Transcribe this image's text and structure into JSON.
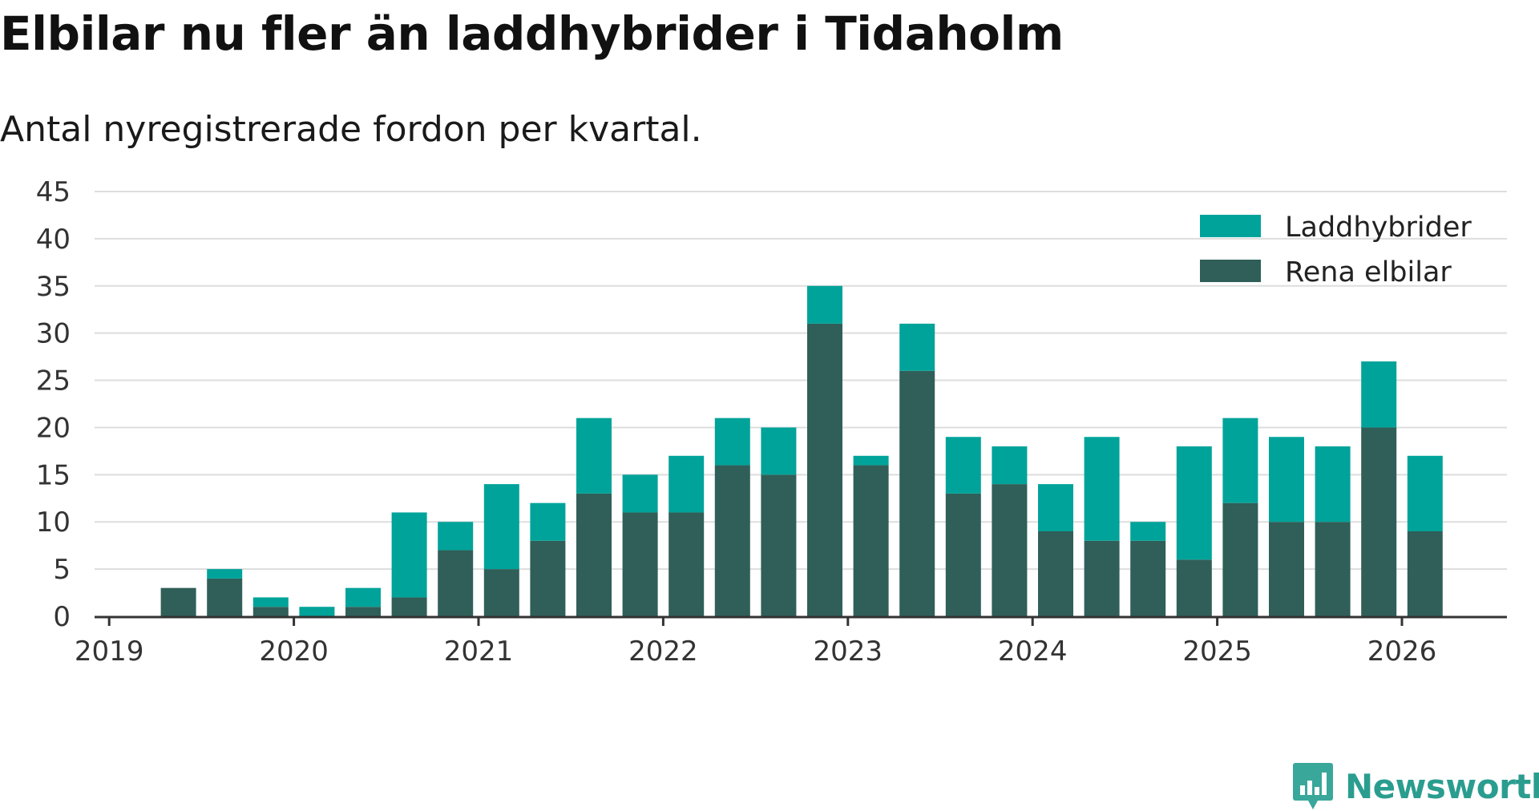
{
  "chart_data": {
    "type": "bar",
    "stacked": true,
    "title": "Elbilar nu fler än laddhybrider i Tidaholm",
    "subtitle": "Antal nyregistrerade fordon per kvartal.",
    "xlabel": "",
    "ylabel": "",
    "ylim": [
      0,
      45
    ],
    "y_ticks": [
      "0",
      "5",
      "10",
      "15",
      "20",
      "25",
      "30",
      "35",
      "40",
      "45"
    ],
    "x_ticks": [
      "2019",
      "2020",
      "2021",
      "2022",
      "2023",
      "2024",
      "2025",
      "2026"
    ],
    "grid": true,
    "legend_position": "top-right",
    "categories": [
      "2019 Q1",
      "2019 Q2",
      "2019 Q3",
      "2019 Q4",
      "2020 Q1",
      "2020 Q2",
      "2020 Q3",
      "2020 Q4",
      "2021 Q1",
      "2021 Q2",
      "2021 Q3",
      "2021 Q4",
      "2022 Q1",
      "2022 Q2",
      "2022 Q3",
      "2022 Q4",
      "2023 Q1",
      "2023 Q2",
      "2023 Q3",
      "2023 Q4",
      "2024 Q1",
      "2024 Q2",
      "2024 Q3",
      "2024 Q4",
      "2025 Q1",
      "2025 Q2",
      "2025 Q3",
      "2025 Q4",
      "2026 Q1"
    ],
    "series": [
      {
        "name": "Laddhybrider",
        "color": "#00a39a",
        "values": [
          0,
          0,
          1,
          1,
          1,
          2,
          9,
          3,
          9,
          4,
          8,
          4,
          6,
          5,
          5,
          4,
          1,
          5,
          6,
          4,
          5,
          11,
          2,
          12,
          9,
          9,
          8,
          7,
          8
        ]
      },
      {
        "name": "Rena elbilar",
        "color": "#2f5f58",
        "values": [
          0,
          3,
          4,
          1,
          0,
          1,
          2,
          7,
          5,
          8,
          13,
          11,
          11,
          16,
          15,
          31,
          16,
          26,
          13,
          14,
          9,
          8,
          8,
          6,
          12,
          10,
          10,
          20,
          9
        ]
      }
    ]
  },
  "brand": {
    "name": "Newsworthy",
    "color": "#2a9d8f"
  }
}
